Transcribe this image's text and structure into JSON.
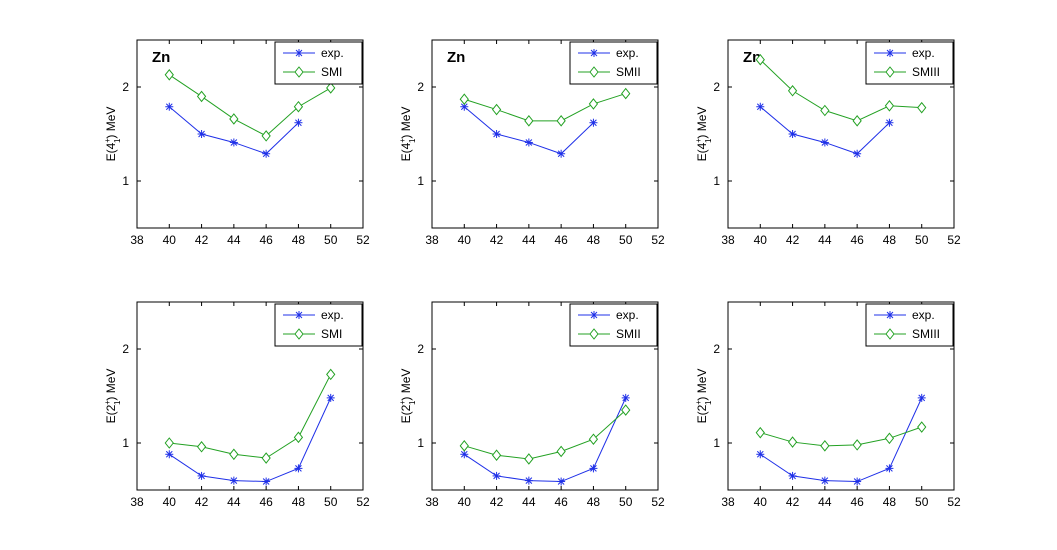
{
  "chart_data": [
    {
      "type": "line",
      "title": "Zn",
      "ylabel": "E(4",
      "ylabel_sup": "+",
      "ylabel_sub": "1",
      "ylabel_end": ") MeV",
      "xlim": [
        38,
        52
      ],
      "ylim": [
        0.5,
        2.5
      ],
      "xticks": [
        "38",
        "40",
        "42",
        "44",
        "46",
        "48",
        "50",
        "52"
      ],
      "yticks": [
        "1",
        "2"
      ],
      "grid": false,
      "legend": "top-right",
      "series": [
        {
          "name": "exp.",
          "marker": "asterisk",
          "color": "#1f30e8",
          "x": [
            40,
            42,
            44,
            46,
            48
          ],
          "y": [
            1.79,
            1.5,
            1.41,
            1.29,
            1.62
          ]
        },
        {
          "name": "SMI",
          "marker": "diamond",
          "color": "#23a123",
          "x": [
            40,
            42,
            44,
            46,
            48,
            50
          ],
          "y": [
            2.13,
            1.9,
            1.66,
            1.48,
            1.79,
            1.99
          ]
        }
      ]
    },
    {
      "type": "line",
      "title": "Zn",
      "ylabel": "E(4",
      "ylabel_sup": "+",
      "ylabel_sub": "1",
      "ylabel_end": ") MeV",
      "xlim": [
        38,
        52
      ],
      "ylim": [
        0.5,
        2.5
      ],
      "xticks": [
        "38",
        "40",
        "42",
        "44",
        "46",
        "48",
        "50",
        "52"
      ],
      "yticks": [
        "1",
        "2"
      ],
      "grid": false,
      "legend": "top-right",
      "series": [
        {
          "name": "exp.",
          "marker": "asterisk",
          "color": "#1f30e8",
          "x": [
            40,
            42,
            44,
            46,
            48
          ],
          "y": [
            1.79,
            1.5,
            1.41,
            1.29,
            1.62
          ]
        },
        {
          "name": "SMII",
          "marker": "diamond",
          "color": "#23a123",
          "x": [
            40,
            42,
            44,
            46,
            48,
            50
          ],
          "y": [
            1.87,
            1.76,
            1.64,
            1.64,
            1.82,
            1.93
          ]
        }
      ]
    },
    {
      "type": "line",
      "title": "Zn",
      "ylabel": "E(4",
      "ylabel_sup": "+",
      "ylabel_sub": "1",
      "ylabel_end": ") MeV",
      "xlim": [
        38,
        52
      ],
      "ylim": [
        0.5,
        2.5
      ],
      "xticks": [
        "38",
        "40",
        "42",
        "44",
        "46",
        "48",
        "50",
        "52"
      ],
      "yticks": [
        "1",
        "2"
      ],
      "grid": false,
      "legend": "top-right",
      "series": [
        {
          "name": "exp.",
          "marker": "asterisk",
          "color": "#1f30e8",
          "x": [
            40,
            42,
            44,
            46,
            48
          ],
          "y": [
            1.79,
            1.5,
            1.41,
            1.29,
            1.62
          ]
        },
        {
          "name": "SMIII",
          "marker": "diamond",
          "color": "#23a123",
          "x": [
            40,
            42,
            44,
            46,
            48,
            50
          ],
          "y": [
            2.29,
            1.96,
            1.75,
            1.64,
            1.8,
            1.78
          ]
        }
      ]
    },
    {
      "type": "line",
      "title": "",
      "ylabel": "E(2",
      "ylabel_sup": "+",
      "ylabel_sub": "1",
      "ylabel_end": ") MeV",
      "xlim": [
        38,
        52
      ],
      "ylim": [
        0.5,
        2.5
      ],
      "xticks": [
        "38",
        "40",
        "42",
        "44",
        "46",
        "48",
        "50",
        "52"
      ],
      "yticks": [
        "1",
        "2"
      ],
      "grid": false,
      "legend": "top-right",
      "series": [
        {
          "name": "exp.",
          "marker": "asterisk",
          "color": "#1f30e8",
          "x": [
            40,
            42,
            44,
            46,
            48,
            50
          ],
          "y": [
            0.88,
            0.65,
            0.6,
            0.59,
            0.73,
            1.48
          ]
        },
        {
          "name": "SMI",
          "marker": "diamond",
          "color": "#23a123",
          "x": [
            40,
            42,
            44,
            46,
            48,
            50
          ],
          "y": [
            1.0,
            0.96,
            0.88,
            0.84,
            1.06,
            1.73
          ]
        }
      ]
    },
    {
      "type": "line",
      "title": "",
      "ylabel": "E(2",
      "ylabel_sup": "+",
      "ylabel_sub": "1",
      "ylabel_end": ") MeV",
      "xlim": [
        38,
        52
      ],
      "ylim": [
        0.5,
        2.5
      ],
      "xticks": [
        "38",
        "40",
        "42",
        "44",
        "46",
        "48",
        "50",
        "52"
      ],
      "yticks": [
        "1",
        "2"
      ],
      "grid": false,
      "legend": "top-right",
      "series": [
        {
          "name": "exp.",
          "marker": "asterisk",
          "color": "#1f30e8",
          "x": [
            40,
            42,
            44,
            46,
            48,
            50
          ],
          "y": [
            0.88,
            0.65,
            0.6,
            0.59,
            0.73,
            1.48
          ]
        },
        {
          "name": "SMII",
          "marker": "diamond",
          "color": "#23a123",
          "x": [
            40,
            42,
            44,
            46,
            48,
            50
          ],
          "y": [
            0.97,
            0.87,
            0.83,
            0.91,
            1.04,
            1.35
          ]
        }
      ]
    },
    {
      "type": "line",
      "title": "",
      "ylabel": "E(2",
      "ylabel_sup": "+",
      "ylabel_sub": "1",
      "ylabel_end": ") MeV",
      "xlim": [
        38,
        52
      ],
      "ylim": [
        0.5,
        2.5
      ],
      "xticks": [
        "38",
        "40",
        "42",
        "44",
        "46",
        "48",
        "50",
        "52"
      ],
      "yticks": [
        "1",
        "2"
      ],
      "grid": false,
      "legend": "top-right",
      "series": [
        {
          "name": "exp.",
          "marker": "asterisk",
          "color": "#1f30e8",
          "x": [
            40,
            42,
            44,
            46,
            48,
            50
          ],
          "y": [
            0.88,
            0.65,
            0.6,
            0.59,
            0.73,
            1.48
          ]
        },
        {
          "name": "SMIII",
          "marker": "diamond",
          "color": "#23a123",
          "x": [
            40,
            42,
            44,
            46,
            48,
            50
          ],
          "y": [
            1.11,
            1.01,
            0.97,
            0.98,
            1.05,
            1.17
          ]
        }
      ]
    }
  ]
}
